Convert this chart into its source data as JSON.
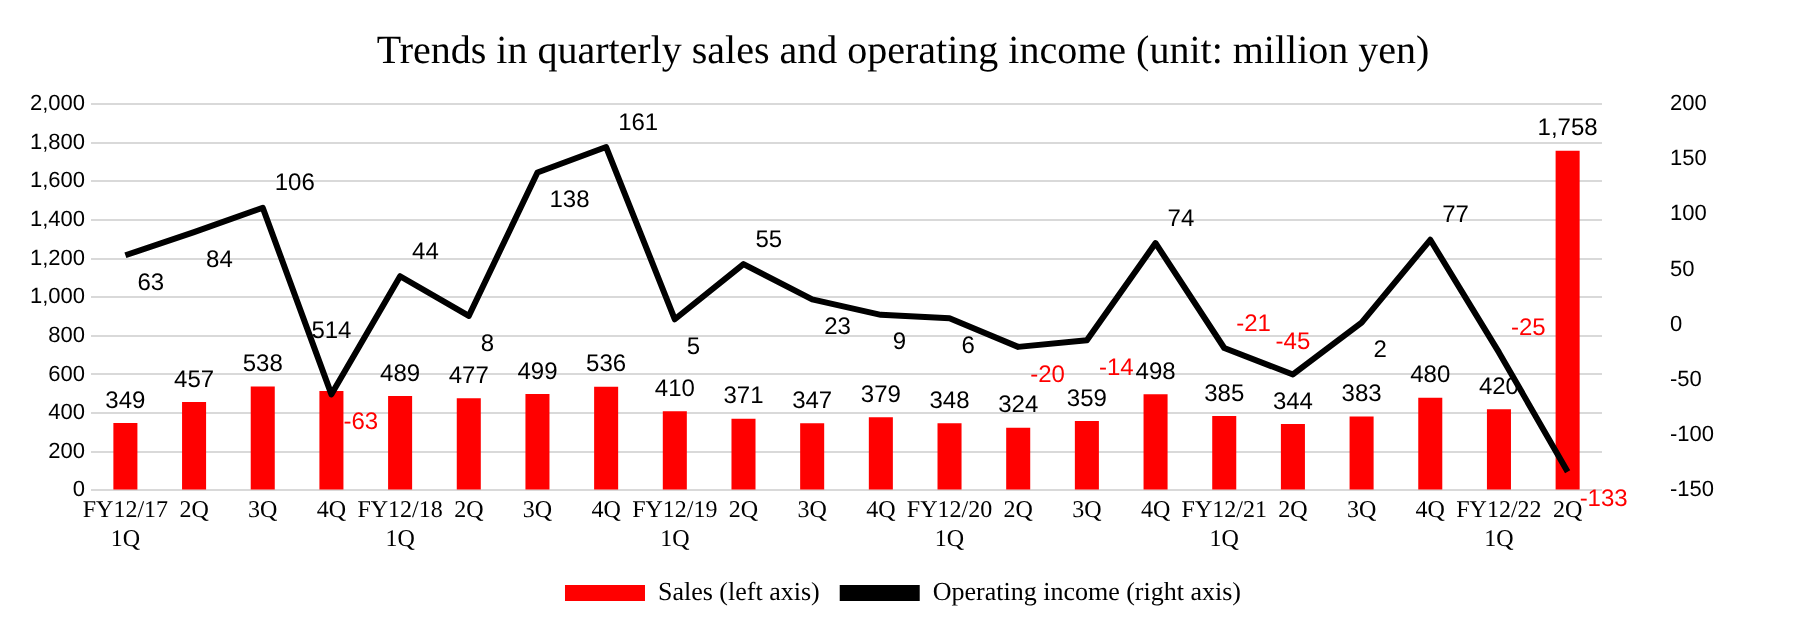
{
  "chart_data": {
    "type": "bar",
    "title": "Trends in quarterly sales and operating income (unit: million yen)",
    "categories": [
      "FY12/17\n1Q",
      "2Q",
      "3Q",
      "4Q",
      "FY12/18\n1Q",
      "2Q",
      "3Q",
      "4Q",
      "FY12/19\n1Q",
      "2Q",
      "3Q",
      "4Q",
      "FY12/20\n1Q",
      "2Q",
      "3Q",
      "4Q",
      "FY12/21\n1Q",
      "2Q",
      "3Q",
      "4Q",
      "FY12/22\n1Q",
      "2Q"
    ],
    "series": [
      {
        "name": "Sales (left axis)",
        "color": "#ff0000",
        "values": [
          349,
          457,
          538,
          514,
          489,
          477,
          499,
          536,
          410,
          371,
          347,
          379,
          348,
          324,
          359,
          498,
          385,
          344,
          383,
          480,
          420,
          1758
        ],
        "value_labels": [
          "349",
          "457",
          "538",
          "514",
          "489",
          "477",
          "499",
          "536",
          "410",
          "371",
          "347",
          "379",
          "348",
          "324",
          "359",
          "498",
          "385",
          "344",
          "383",
          "480",
          "420",
          "1,758"
        ]
      },
      {
        "name": "Operating income (right axis)",
        "type": "line",
        "axis": "y2",
        "color": "#000000",
        "values": [
          63,
          84,
          106,
          -63,
          44,
          8,
          138,
          161,
          5,
          55,
          23,
          9,
          6,
          -20,
          -14,
          74,
          -21,
          -45,
          2,
          77,
          -25,
          -133
        ],
        "value_labels": [
          "63",
          "84",
          "106",
          "-63",
          "44",
          "8",
          "138",
          "161",
          "5",
          "55",
          "23",
          "9",
          "6",
          "-20",
          "-14",
          "74",
          "-21",
          "-45",
          "2",
          "77",
          "-25",
          "-133"
        ]
      }
    ],
    "ylim": [
      0,
      2000
    ],
    "yticks": [
      0,
      200,
      400,
      600,
      800,
      {
        "value": 1000,
        "label": "1,000"
      },
      {
        "value": 1200,
        "label": "1,200"
      },
      {
        "value": 1400,
        "label": "1,400"
      },
      {
        "value": 1600,
        "label": "1,600"
      },
      {
        "value": 1800,
        "label": "1,800"
      },
      {
        "value": 2000,
        "label": "2,000"
      }
    ],
    "y2lim": [
      -150,
      200
    ],
    "y2ticks": [
      -150,
      -100,
      -50,
      0,
      50,
      100,
      150,
      200
    ],
    "grid": "y",
    "legend": "bottom",
    "marker": "none",
    "line_style": "solid"
  }
}
